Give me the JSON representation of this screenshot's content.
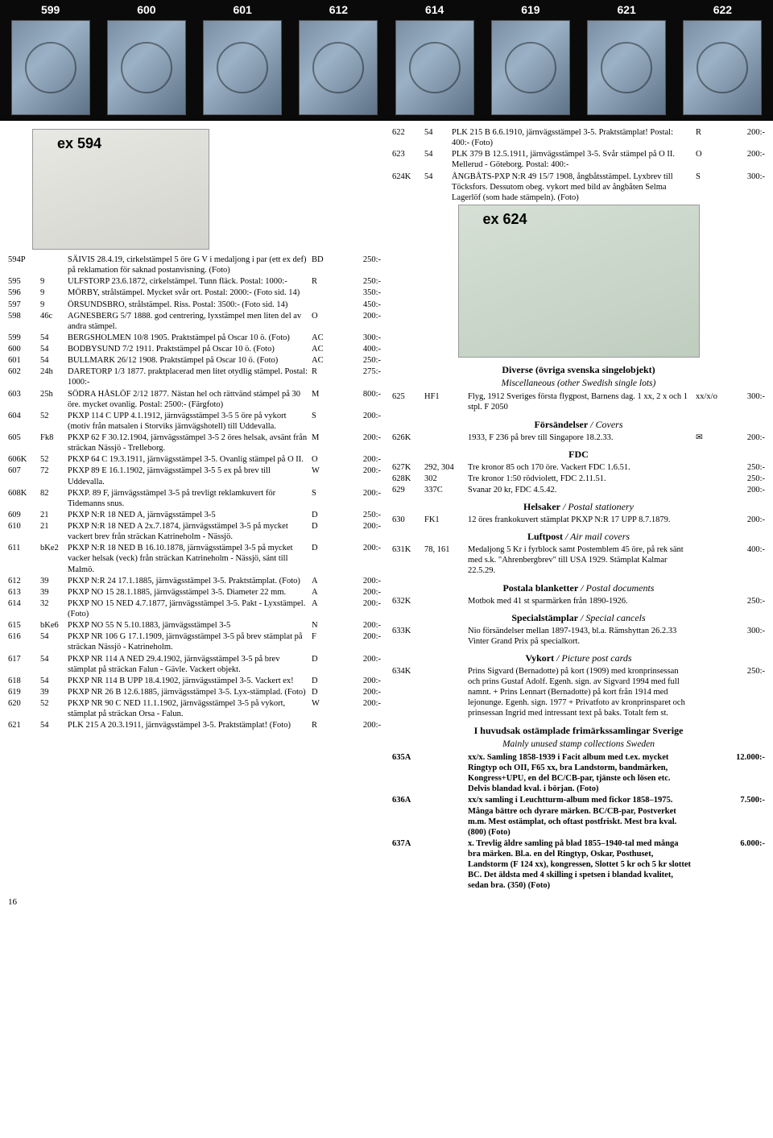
{
  "stamp_header_nums": [
    "599",
    "600",
    "601",
    "612",
    "614",
    "619",
    "621",
    "622"
  ],
  "ex594_label": "ex 594",
  "ex624_label": "ex 624",
  "topright": [
    {
      "no": "622",
      "ref": "54",
      "desc": "PLK 215 B 6.6.1910, järnvägsstämpel 3-5. Praktstämplat! Postal: 400:- (Foto)",
      "cond": "R",
      "price": "200:-"
    },
    {
      "no": "623",
      "ref": "54",
      "desc": "PLK 379 B 12.5.1911, järnvägsstämpel 3-5. Svår stämpel på O II. Mellerud - Göteborg. Postal: 400:-",
      "cond": "O",
      "price": "200:-"
    },
    {
      "no": "624K",
      "ref": "54",
      "desc": "ÅNGBÅTS-PXP N:R 49 15/7 1908, ångbåtsstämpel. Lyxbrev till Töcksfors. Dessutom obeg. vykort med bild av ångbåten Selma Lagerlöf (som hade stämpeln). (Foto)",
      "cond": "S",
      "price": "300:-"
    }
  ],
  "left": [
    {
      "no": "594P",
      "ref": "",
      "desc": "SÄIVIS 28.4.19, cirkelstämpel 5 öre G V i medaljong i par (ett ex def) på reklamation för saknad postanvisning. (Foto)",
      "cond": "BD",
      "price": "250:-"
    },
    {
      "no": "595",
      "ref": "9",
      "desc": "ULFSTORP 23.6.1872, cirkelstämpel. Tunn fläck. Postal: 1000:-",
      "cond": "R",
      "price": "250:-"
    },
    {
      "no": "596",
      "ref": "9",
      "desc": "MÖRBY, strålstämpel. Mycket svår ort. Postal: 2000:- (Foto sid. 14)",
      "cond": "",
      "price": "350:-"
    },
    {
      "no": "597",
      "ref": "9",
      "desc": "ÖRSUNDSBRO, strålstämpel. Riss. Postal: 3500:- (Foto sid. 14)",
      "cond": "",
      "price": "450:-"
    },
    {
      "no": "598",
      "ref": "46c",
      "desc": "AGNESBERG 5/7 1888. god centrering, lyxstämpel men liten del av andra stämpel.",
      "cond": "O",
      "price": "200:-"
    },
    {
      "no": "599",
      "ref": "54",
      "desc": "BERGSHOLMEN 10/8 1905. Praktstämpel på Oscar 10 ö. (Foto)",
      "cond": "AC",
      "price": "300:-"
    },
    {
      "no": "600",
      "ref": "54",
      "desc": "BODBYSUND 7/2 1911. Praktstämpel på Oscar 10 ö. (Foto)",
      "cond": "AC",
      "price": "400:-"
    },
    {
      "no": "601",
      "ref": "54",
      "desc": "BULLMARK 26/12 1908. Praktstämpel på Oscar 10 ö. (Foto)",
      "cond": "AC",
      "price": "250:-"
    },
    {
      "no": "602",
      "ref": "24h",
      "desc": "DARETORP 1/3 1877. praktplacerad men litet otydlig stämpel. Postal: 1000:-",
      "cond": "R",
      "price": "275:-"
    },
    {
      "no": "603",
      "ref": "25h",
      "desc": "SÖDRA HÅSLÖF 2/12 1877. Nästan hel och rättvänd stämpel på 30 öre. mycket ovanlig. Postal: 2500:- (Färgfoto)",
      "cond": "M",
      "price": "800:-"
    },
    {
      "no": "604",
      "ref": "52",
      "desc": "PKXP 114 C UPP 4.1.1912, järnvägsstämpel 3-5 5 öre på vykort (motiv från matsalen i Storviks järnvägshotell) till Uddevalla.",
      "cond": "S",
      "price": "200:-"
    },
    {
      "no": "605",
      "ref": "Fk8",
      "desc": "PKXP 62 F 30.12.1904, järnvägsstämpel 3-5 2 öres helsak, avsänt från sträckan Nässjö - Trelleborg.",
      "cond": "M",
      "price": "200:-"
    },
    {
      "no": "606K",
      "ref": "52",
      "desc": "PKXP 64 C 19.3.1911, järnvägsstämpel 3-5. Ovanlig stämpel på O II.",
      "cond": "O",
      "price": "200:-"
    },
    {
      "no": "607",
      "ref": "72",
      "desc": "PKXP 89 E 16.1.1902, järnvägsstämpel 3-5 5 ex på brev till Uddevalla.",
      "cond": "W",
      "price": "200:-"
    },
    {
      "no": "608K",
      "ref": "82",
      "desc": "PKXP. 89 F, järnvägsstämpel 3-5 på trevligt reklamkuvert för Tidemanns snus.",
      "cond": "S",
      "price": "200:-"
    },
    {
      "no": "609",
      "ref": "21",
      "desc": "PKXP N:R 18 NED A, järnvägsstämpel 3-5",
      "cond": "D",
      "price": "250:-"
    },
    {
      "no": "610",
      "ref": "21",
      "desc": "PKXP N:R 18 NED A 2x.7.1874, järnvägsstämpel 3-5 på mycket vackert brev från sträckan Katrineholm - Nässjö.",
      "cond": "D",
      "price": "200:-"
    },
    {
      "no": "611",
      "ref": "bKe2",
      "desc": "PKXP N:R 18 NED B 16.10.1878, järnvägsstämpel 3-5 på mycket vacker helsak (veck) från sträckan Katrineholm - Nässjö, sänt till Malmö.",
      "cond": "D",
      "price": "200:-"
    },
    {
      "no": "612",
      "ref": "39",
      "desc": "PKXP N:R 24 17.1.1885, järnvägsstämpel 3-5. Praktstämplat. (Foto)",
      "cond": "A",
      "price": "200:-"
    },
    {
      "no": "613",
      "ref": "39",
      "desc": "PKXP NO 15 28.1.1885, järnvägsstämpel 3-5. Diameter 22 mm.",
      "cond": "A",
      "price": "200:-"
    },
    {
      "no": "614",
      "ref": "32",
      "desc": "PKXP NO 15 NED 4.7.1877, järnvägsstämpel 3-5. Pakt - Lyxstämpel. (Foto)",
      "cond": "A",
      "price": "200:-"
    },
    {
      "no": "615",
      "ref": "bKe6",
      "desc": "PKXP NO 55 N 5.10.1883, järnvägsstämpel 3-5",
      "cond": "N",
      "price": "200:-"
    },
    {
      "no": "616",
      "ref": "54",
      "desc": "PKXP NR 106 G 17.1.1909, järnvägsstämpel 3-5 på brev stämplat på sträckan Nässjö - Katrineholm.",
      "cond": "F",
      "price": "200:-"
    },
    {
      "no": "617",
      "ref": "54",
      "desc": "PKXP NR 114 A NED 29.4.1902, järnvägsstämpel 3-5 på brev stämplat på sträckan Falun - Gävle. Vackert objekt.",
      "cond": "D",
      "price": "200:-"
    },
    {
      "no": "618",
      "ref": "54",
      "desc": "PKXP NR 114 B UPP 18.4.1902, järnvägsstämpel 3-5. Vackert ex!",
      "cond": "D",
      "price": "200:-"
    },
    {
      "no": "619",
      "ref": "39",
      "desc": "PKXP NR 26 B 12.6.1885, järnvägsstämpel 3-5. Lyx-stämplad. (Foto)",
      "cond": "D",
      "price": "200:-"
    },
    {
      "no": "620",
      "ref": "52",
      "desc": "PKXP NR 90 C NED 11.1.1902, järnvägsstämpel 3-5 på vykort, stämplat på sträckan Orsa - Falun.",
      "cond": "W",
      "price": "200:-"
    },
    {
      "no": "621",
      "ref": "54",
      "desc": "PLK 215 A 20.3.1911, järnvägsstämpel 3-5. Praktstämplat! (Foto)",
      "cond": "R",
      "price": "200:-"
    }
  ],
  "headings": {
    "diverse_b": "Diverse (övriga svenska singelobjekt)",
    "diverse_i": "Miscellaneous (other Swedish single lots)",
    "fors_b": "Försändelser",
    "fors_i": " / Covers",
    "fdc": "FDC",
    "hel_b": "Helsaker",
    "hel_i": " / Postal stationery",
    "luft_b": "Luftpost",
    "luft_i": " / Air mail covers",
    "post_b": "Postala blanketter",
    "post_i": " / Postal documents",
    "spec_b": "Specialstämplar",
    "spec_i": " / Special cancels",
    "vy_b": "Vykort",
    "vy_i": " / Picture post cards",
    "huv_b": "I huvudsak ostämplade frimärkssamlingar Sverige",
    "huv_i": "Mainly unused stamp collections Sweden"
  },
  "right": [
    {
      "no": "625",
      "ref": "HF1",
      "desc": "Flyg, 1912 Sveriges första flygpost, Barnens dag. 1 xx, 2 x och 1 stpl. F 2050",
      "cond": "xx/x/o",
      "price": "300:-"
    },
    {
      "heading": "fors"
    },
    {
      "no": "626K",
      "ref": "",
      "desc": "1933, F 236 på brev till Singapore 18.2.33.",
      "cond": "✉",
      "price": "200:-"
    },
    {
      "heading": "fdc"
    },
    {
      "no": "627K",
      "ref": "292, 304",
      "desc": "Tre kronor 85 och 170 öre. Vackert FDC 1.6.51.",
      "cond": "",
      "price": "250:-"
    },
    {
      "no": "628K",
      "ref": "302",
      "desc": "Tre kronor 1:50 rödviolett, FDC 2.11.51.",
      "cond": "",
      "price": "250:-"
    },
    {
      "no": "629",
      "ref": "337C",
      "desc": "Svanar 20 kr, FDC 4.5.42.",
      "cond": "",
      "price": "200:-"
    },
    {
      "heading": "hel"
    },
    {
      "no": "630",
      "ref": "FK1",
      "desc": "12 öres frankokuvert stämplat PKXP N:R 17 UPP 8.7.1879.",
      "cond": "",
      "price": "200:-"
    },
    {
      "heading": "luft"
    },
    {
      "no": "631K",
      "ref": "78, 161",
      "desc": "Medaljong 5 Kr i fyrblock samt Postemblem 45 öre, på rek sänt med s.k. \"Ahrenbergbrev\" till USA 1929. Stämplat Kalmar 22.5.29.",
      "cond": "",
      "price": "400:-"
    },
    {
      "heading": "post"
    },
    {
      "no": "632K",
      "ref": "",
      "desc": "Motbok med 41 st sparmärken från 1890-1926.",
      "cond": "",
      "price": "250:-"
    },
    {
      "heading": "spec"
    },
    {
      "no": "633K",
      "ref": "",
      "desc": "Nio försändelser mellan 1897-1943, bl.a. Rämshyttan 26.2.33 Vinter Grand Prix på specialkort.",
      "cond": "",
      "price": "300:-"
    },
    {
      "heading": "vy"
    },
    {
      "no": "634K",
      "ref": "",
      "desc": "Prins Sigvard (Bernadotte) på kort (1909) med kronprinsessan och prins Gustaf Adolf. Egenh. sign. av Sigvard 1994 med full namnt. + Prins Lennart (Bernadotte) på kort från 1914 med lejonunge. Egenh. sign. 1977 + Privatfoto av kronprinsparet och prinsessan Ingrid med intressant text på baks. Totalt fem st.",
      "cond": "",
      "price": "250:-"
    },
    {
      "heading": "huv"
    },
    {
      "no": "635A",
      "ref": "",
      "desc": "xx/x. Samling 1858-1939 i Facit album med t.ex. mycket Ringtyp och OII, F65 xx, bra Landstorm, bandmärken, Kongress+UPU, en del BC/CB-par, tjänste och lösen etc. Delvis blandad kval. i början. (Foto)",
      "cond": "",
      "price": "12.000:-",
      "bold": true
    },
    {
      "no": "636A",
      "ref": "",
      "desc": "xx/x samling i Leuchtturm-album med fickor 1858–1975. Många bättre och dyrare märken. BC/CB-par, Postverket m.m. Mest ostämplat, och oftast postfriskt. Mest bra kval. (800) (Foto)",
      "cond": "",
      "price": "7.500:-",
      "bold": true
    },
    {
      "no": "637A",
      "ref": "",
      "desc": "x. Trevlig äldre samling på blad 1855–1940-tal med många bra märken. Bl.a. en del Ringtyp, Oskar, Posthuset, Landstorm (F 124 xx), kongressen, Slottet 5 kr och 5 kr slottet BC. Det äldsta med 4 skilling i spetsen i blandad kvalitet, sedan bra. (350) (Foto)",
      "cond": "",
      "price": "6.000:-",
      "bold": true
    }
  ],
  "page_no": "16"
}
